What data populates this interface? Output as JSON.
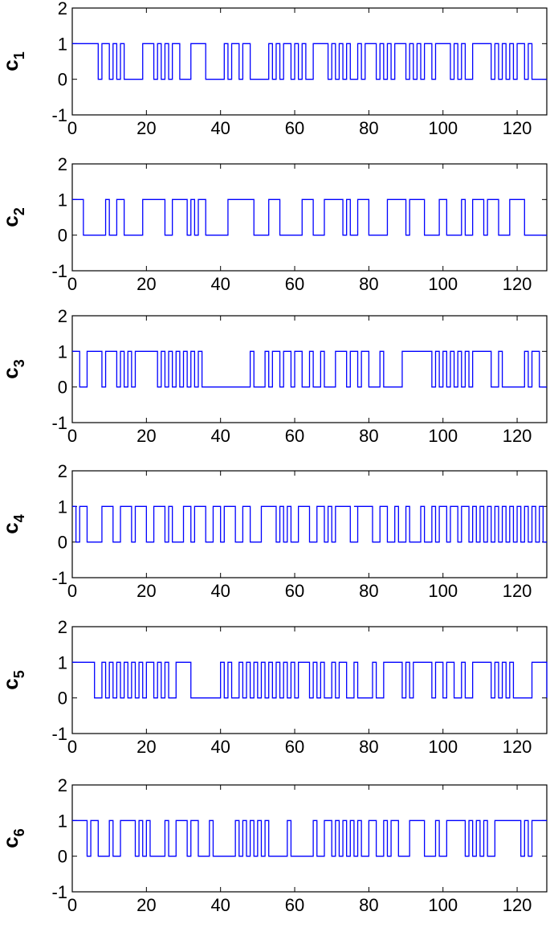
{
  "chart_data": [
    {
      "type": "line",
      "step": "post",
      "ylabel": "c",
      "ylabel_subscript": "1",
      "xlim": [
        0,
        128
      ],
      "ylim": [
        -1,
        2
      ],
      "xticks": [
        0,
        20,
        40,
        60,
        80,
        100,
        120
      ],
      "yticks": [
        -1,
        0,
        1,
        2
      ],
      "color": "#0000ff",
      "x": [
        0,
        7,
        8,
        10,
        11,
        12,
        13,
        14,
        19,
        22,
        23,
        24,
        25,
        26,
        27,
        29,
        32,
        36,
        41,
        42,
        43,
        45,
        46,
        48,
        53,
        54,
        55,
        56,
        57,
        59,
        60,
        61,
        62,
        63,
        65,
        69,
        70,
        71,
        72,
        73,
        74,
        75,
        77,
        78,
        79,
        82,
        83,
        84,
        85,
        86,
        87,
        90,
        91,
        92,
        93,
        94,
        95,
        97,
        98,
        102,
        103,
        104,
        105,
        106,
        108,
        113,
        114,
        115,
        116,
        117,
        118,
        119,
        120,
        122,
        123,
        124,
        128
      ],
      "y": [
        1,
        0,
        1,
        0,
        1,
        0,
        1,
        0,
        1,
        0,
        1,
        0,
        1,
        0,
        1,
        0,
        1,
        0,
        1,
        0,
        1,
        0,
        1,
        0,
        1,
        0,
        1,
        0,
        1,
        0,
        1,
        0,
        1,
        0,
        1,
        0,
        1,
        0,
        1,
        0,
        1,
        0,
        1,
        0,
        1,
        0,
        1,
        0,
        1,
        0,
        1,
        0,
        1,
        0,
        1,
        0,
        1,
        0,
        1,
        0,
        1,
        0,
        1,
        0,
        1,
        0,
        1,
        0,
        1,
        0,
        1,
        0,
        1,
        0,
        1,
        0,
        0
      ]
    },
    {
      "type": "line",
      "step": "post",
      "ylabel": "c",
      "ylabel_subscript": "2",
      "xlim": [
        0,
        128
      ],
      "ylim": [
        -1,
        2
      ],
      "xticks": [
        0,
        20,
        40,
        60,
        80,
        100,
        120
      ],
      "yticks": [
        -1,
        0,
        1,
        2
      ],
      "color": "#0000ff",
      "x": [
        0,
        3,
        9,
        10,
        12,
        14,
        19,
        25,
        27,
        31,
        32,
        33,
        34,
        36,
        42,
        49,
        53,
        56,
        62,
        65,
        68,
        73,
        74,
        75,
        77,
        80,
        85,
        90,
        91,
        95,
        99,
        101,
        105,
        106,
        108,
        111,
        112,
        115,
        118,
        122,
        128
      ],
      "y": [
        1,
        0,
        1,
        0,
        1,
        0,
        1,
        0,
        1,
        0,
        1,
        0,
        1,
        0,
        1,
        0,
        1,
        0,
        1,
        0,
        1,
        0,
        1,
        0,
        1,
        0,
        1,
        0,
        1,
        0,
        1,
        0,
        1,
        0,
        1,
        0,
        1,
        0,
        1,
        0,
        0
      ]
    },
    {
      "type": "line",
      "step": "post",
      "ylabel": "c",
      "ylabel_subscript": "3",
      "xlim": [
        0,
        128
      ],
      "ylim": [
        -1,
        2
      ],
      "xticks": [
        0,
        20,
        40,
        60,
        80,
        100,
        120
      ],
      "yticks": [
        -1,
        0,
        1,
        2
      ],
      "color": "#0000ff",
      "x": [
        0,
        2,
        4,
        8,
        9,
        12,
        13,
        14,
        15,
        16,
        17,
        23,
        24,
        25,
        26,
        27,
        28,
        29,
        30,
        31,
        32,
        33,
        34,
        35,
        48,
        49,
        52,
        53,
        54,
        56,
        57,
        59,
        60,
        62,
        64,
        65,
        67,
        68,
        71,
        74,
        75,
        77,
        78,
        80,
        83,
        84,
        89,
        97,
        98,
        99,
        100,
        101,
        102,
        103,
        104,
        105,
        106,
        107,
        108,
        113,
        115,
        116,
        122,
        123,
        124,
        126,
        128
      ],
      "y": [
        1,
        0,
        1,
        0,
        1,
        0,
        1,
        0,
        1,
        0,
        1,
        0,
        1,
        0,
        1,
        0,
        1,
        0,
        1,
        0,
        1,
        0,
        1,
        0,
        1,
        0,
        1,
        0,
        1,
        0,
        1,
        0,
        1,
        0,
        1,
        0,
        1,
        0,
        1,
        0,
        1,
        0,
        1,
        0,
        1,
        0,
        1,
        0,
        1,
        0,
        1,
        0,
        1,
        0,
        1,
        0,
        1,
        0,
        1,
        0,
        1,
        0,
        1,
        0,
        1,
        0,
        0
      ]
    },
    {
      "type": "line",
      "step": "post",
      "ylabel": "c",
      "ylabel_subscript": "4",
      "xlim": [
        0,
        128
      ],
      "ylim": [
        -1,
        2
      ],
      "xticks": [
        0,
        20,
        40,
        60,
        80,
        100,
        120
      ],
      "yticks": [
        -1,
        0,
        1,
        2
      ],
      "color": "#0000ff",
      "x": [
        0,
        1,
        2,
        4,
        8,
        11,
        13,
        16,
        17,
        20,
        22,
        25,
        26,
        27,
        30,
        32,
        33,
        36,
        38,
        40,
        41,
        44,
        46,
        48,
        51,
        55,
        56,
        57,
        58,
        59,
        61,
        64,
        66,
        68,
        69,
        70,
        71,
        75,
        77,
        76,
        77,
        78,
        81,
        83,
        85,
        87,
        88,
        90,
        91,
        94,
        95,
        97,
        98,
        99,
        101,
        102,
        104,
        105,
        107,
        108,
        109,
        110,
        111,
        112,
        113,
        114,
        115,
        116,
        117,
        118,
        119,
        120,
        121,
        122,
        123,
        124,
        125,
        126,
        127,
        128
      ],
      "y": [
        1,
        0,
        1,
        0,
        1,
        0,
        1,
        0,
        1,
        0,
        1,
        0,
        1,
        0,
        1,
        0,
        1,
        0,
        1,
        0,
        1,
        0,
        1,
        0,
        1,
        0,
        1,
        0,
        1,
        0,
        1,
        0,
        1,
        0,
        1,
        0,
        1,
        0,
        1,
        1,
        1,
        1,
        0,
        1,
        0,
        1,
        0,
        1,
        0,
        1,
        0,
        1,
        0,
        1,
        0,
        1,
        0,
        1,
        0,
        1,
        0,
        1,
        0,
        1,
        0,
        1,
        0,
        1,
        0,
        1,
        0,
        1,
        0,
        1,
        0,
        1,
        0,
        1,
        0,
        0
      ]
    },
    {
      "type": "line",
      "step": "post",
      "ylabel": "c",
      "ylabel_subscript": "5",
      "xlim": [
        0,
        128
      ],
      "ylim": [
        -1,
        2
      ],
      "xticks": [
        0,
        20,
        40,
        60,
        80,
        100,
        120
      ],
      "yticks": [
        -1,
        0,
        1,
        2
      ],
      "color": "#0000ff",
      "x": [
        0,
        6,
        8,
        9,
        10,
        11,
        12,
        13,
        14,
        15,
        16,
        17,
        18,
        19,
        20,
        22,
        23,
        24,
        25,
        26,
        28,
        32,
        40,
        41,
        42,
        43,
        45,
        46,
        47,
        48,
        49,
        50,
        51,
        52,
        53,
        54,
        55,
        56,
        57,
        58,
        59,
        60,
        61,
        64,
        65,
        66,
        67,
        68,
        70,
        71,
        72,
        74,
        76,
        77,
        81,
        82,
        84,
        89,
        90,
        91,
        92,
        97,
        98,
        100,
        101,
        103,
        105,
        106,
        108,
        113,
        114,
        115,
        116,
        117,
        118,
        119,
        124,
        128
      ],
      "y": [
        1,
        0,
        1,
        0,
        1,
        0,
        1,
        0,
        1,
        0,
        1,
        0,
        1,
        0,
        1,
        0,
        1,
        0,
        1,
        0,
        1,
        0,
        1,
        0,
        1,
        0,
        1,
        0,
        1,
        0,
        1,
        0,
        1,
        0,
        1,
        0,
        1,
        0,
        1,
        0,
        1,
        0,
        1,
        0,
        1,
        0,
        1,
        0,
        1,
        0,
        1,
        0,
        1,
        0,
        1,
        0,
        1,
        0,
        1,
        0,
        1,
        0,
        1,
        0,
        1,
        0,
        1,
        0,
        1,
        0,
        1,
        0,
        1,
        0,
        1,
        0,
        1,
        0
      ]
    },
    {
      "type": "line",
      "step": "post",
      "ylabel": "c",
      "ylabel_subscript": "6",
      "xlim": [
        0,
        128
      ],
      "ylim": [
        -1,
        2
      ],
      "xticks": [
        0,
        20,
        40,
        60,
        80,
        100,
        120
      ],
      "yticks": [
        -1,
        0,
        1,
        2
      ],
      "color": "#0000ff",
      "x": [
        0,
        4,
        5,
        7,
        10,
        11,
        13,
        17,
        18,
        19,
        20,
        21,
        25,
        26,
        28,
        31,
        32,
        34,
        37,
        38,
        44,
        45,
        46,
        47,
        48,
        49,
        50,
        51,
        52,
        53,
        58,
        59,
        65,
        66,
        68,
        70,
        71,
        72,
        73,
        74,
        75,
        76,
        77,
        78,
        80,
        82,
        84,
        85,
        86,
        88,
        91,
        95,
        98,
        99,
        101,
        106,
        107,
        108,
        109,
        110,
        111,
        112,
        114,
        121,
        122,
        123,
        124,
        128
      ],
      "y": [
        1,
        0,
        1,
        0,
        1,
        0,
        1,
        0,
        1,
        0,
        1,
        0,
        1,
        0,
        1,
        0,
        1,
        0,
        1,
        0,
        1,
        0,
        1,
        0,
        1,
        0,
        1,
        0,
        1,
        0,
        1,
        0,
        1,
        0,
        1,
        0,
        1,
        0,
        1,
        0,
        1,
        0,
        1,
        0,
        1,
        0,
        1,
        0,
        1,
        0,
        1,
        0,
        1,
        0,
        1,
        0,
        1,
        0,
        1,
        0,
        1,
        0,
        1,
        0,
        1,
        0,
        1,
        1
      ]
    }
  ]
}
